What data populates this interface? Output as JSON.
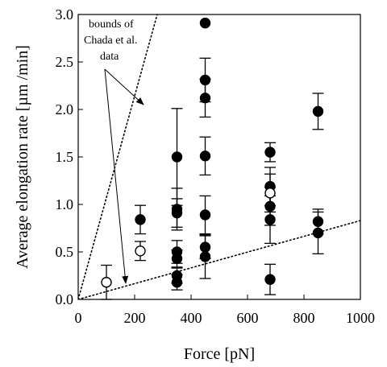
{
  "chart_data": {
    "type": "scatter",
    "xlabel": "Force [pN]",
    "ylabel": "Average elongation rate [µm /min]",
    "xlim": [
      0,
      1000
    ],
    "ylim": [
      0,
      3.0
    ],
    "x_ticks": [
      "0",
      "200",
      "400",
      "600",
      "800",
      "1000"
    ],
    "y_ticks": [
      "0.0",
      "0.5",
      "1.0",
      "1.5",
      "2.0",
      "2.5",
      "3.0"
    ],
    "grid": false,
    "series": [
      {
        "marker": "filled-circle",
        "points": [
          {
            "x": 220,
            "y": 0.84,
            "err": 0.15
          },
          {
            "x": 350,
            "y": 1.5,
            "err": 0.51
          },
          {
            "x": 350,
            "y": 0.95,
            "err": 0.22
          },
          {
            "x": 350,
            "y": 0.91,
            "err": 0.15
          },
          {
            "x": 350,
            "y": 0.5,
            "err": 0.12
          },
          {
            "x": 350,
            "y": 0.43,
            "err": 0.09
          },
          {
            "x": 350,
            "y": 0.25,
            "err": 0.08
          },
          {
            "x": 350,
            "y": 0.18,
            "err": 0.08
          },
          {
            "x": 450,
            "y": 2.91,
            "err": 0.0
          },
          {
            "x": 450,
            "y": 2.31,
            "err": 0.23
          },
          {
            "x": 450,
            "y": 2.12,
            "err": 0.2
          },
          {
            "x": 450,
            "y": 1.51,
            "err": 0.2
          },
          {
            "x": 450,
            "y": 0.89,
            "err": 0.2
          },
          {
            "x": 450,
            "y": 0.55,
            "err": 0.12
          },
          {
            "x": 450,
            "y": 0.45,
            "err": 0.23
          },
          {
            "x": 680,
            "y": 1.55,
            "err": 0.1
          },
          {
            "x": 680,
            "y": 1.19,
            "err": 0.2
          },
          {
            "x": 680,
            "y": 0.98,
            "err": 0.2
          },
          {
            "x": 680,
            "y": 0.84,
            "err": 0.25
          },
          {
            "x": 680,
            "y": 0.21,
            "err": 0.16
          },
          {
            "x": 850,
            "y": 1.98,
            "err": 0.19
          },
          {
            "x": 850,
            "y": 0.82,
            "err": 0.13
          },
          {
            "x": 850,
            "y": 0.7,
            "err": 0.22
          }
        ]
      },
      {
        "marker": "open-circle",
        "points": [
          {
            "x": 100,
            "y": 0.18,
            "err": 0.18
          },
          {
            "x": 220,
            "y": 0.51,
            "err": 0.1
          },
          {
            "x": 680,
            "y": 1.12,
            "err": 0.2
          }
        ]
      }
    ],
    "bound_lines": [
      {
        "style": "dotted",
        "x": [
          0,
          280
        ],
        "y": [
          0,
          3.0
        ]
      },
      {
        "style": "dotted",
        "x": [
          0,
          1000
        ],
        "y": [
          0,
          0.83
        ]
      }
    ],
    "annotation": {
      "lines": [
        "bounds of",
        "Chada et al.",
        "data"
      ]
    }
  }
}
